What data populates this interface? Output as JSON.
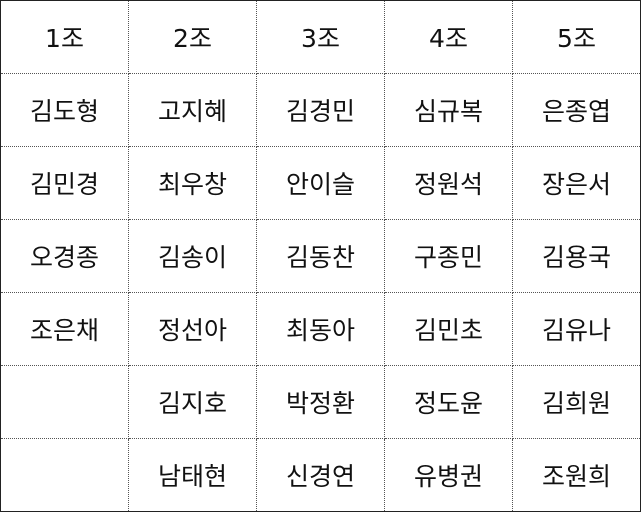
{
  "table": {
    "headers": [
      "1조",
      "2조",
      "3조",
      "4조",
      "5조"
    ],
    "rows": [
      [
        "김도형",
        "고지혜",
        "김경민",
        "심규복",
        "은종엽"
      ],
      [
        "김민경",
        "최우창",
        "안이슬",
        "정원석",
        "장은서"
      ],
      [
        "오경종",
        "김송이",
        "김동찬",
        "구종민",
        "김용국"
      ],
      [
        "조은채",
        "정선아",
        "최동아",
        "김민초",
        "김유나"
      ],
      [
        "",
        "김지호",
        "박정환",
        "정도윤",
        "김희원"
      ],
      [
        "",
        "남태현",
        "신경연",
        "유병권",
        "조원희"
      ]
    ]
  }
}
